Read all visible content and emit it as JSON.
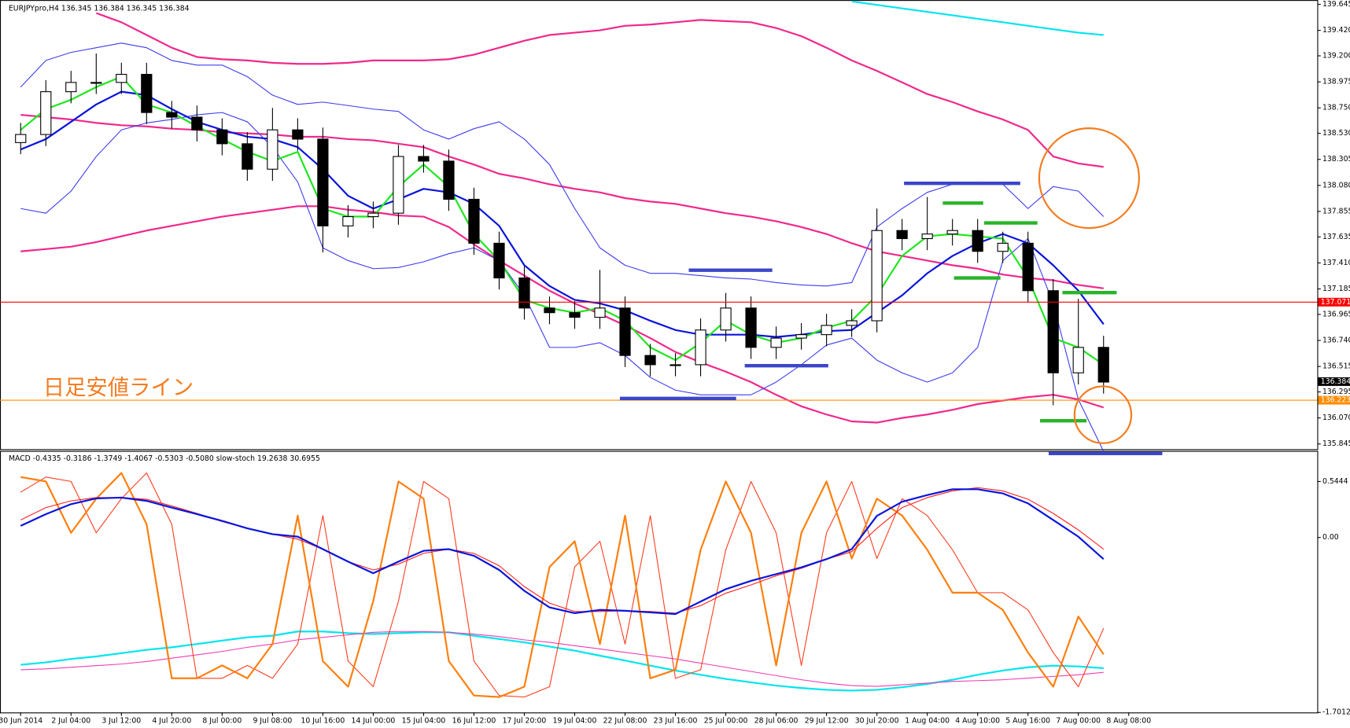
{
  "chart_data": [
    {
      "type": "candlestick",
      "title": "EURJPYpro,H4  136.345 136.384 136.345 136.384",
      "annotation": "日足安値ライン",
      "ylim": [
        135.8,
        139.682
      ],
      "yticks": [
        139.645,
        {
          "value": 139.42,
          "label": "139.420"
        },
        {
          "value": 139.2,
          "label": "139.200"
        },
        138.975,
        {
          "value": 138.75,
          "label": "138.750"
        },
        {
          "value": 138.53,
          "label": "138.530"
        },
        138.305,
        {
          "value": 138.08,
          "label": "138.080"
        },
        137.855,
        137.635,
        {
          "value": 137.41,
          "label": "137.410"
        },
        137.185,
        136.965,
        {
          "value": 136.74,
          "label": "136.740"
        },
        136.515,
        136.295,
        {
          "value": 136.07,
          "label": "136.070"
        },
        135.845
      ],
      "levels": [
        {
          "value": 137.071,
          "color": "#ff0000"
        },
        {
          "value": 136.223,
          "color": "#ff8c00"
        }
      ],
      "last_price": 136.384,
      "open": [
        138.45,
        138.52,
        138.89,
        138.97,
        138.97,
        139.04,
        138.71,
        138.67,
        138.56,
        138.44,
        138.22,
        138.56,
        138.48,
        137.73,
        137.81,
        137.84,
        138.33,
        138.29,
        137.96,
        137.58,
        137.28,
        137.02,
        136.98,
        136.94,
        137.02,
        136.61,
        136.53,
        136.53,
        136.83,
        137.02,
        136.68,
        136.76,
        136.79,
        136.87,
        136.91,
        137.69,
        137.62,
        137.66,
        137.69,
        137.51,
        137.58,
        137.17,
        136.46,
        136.68
      ],
      "high": [
        138.62,
        138.99,
        139.07,
        139.22,
        139.14,
        139.14,
        138.81,
        138.77,
        138.66,
        138.54,
        138.75,
        138.66,
        138.58,
        137.91,
        137.94,
        138.43,
        138.43,
        138.39,
        138.06,
        137.68,
        137.38,
        137.12,
        137.08,
        137.35,
        137.12,
        136.71,
        136.63,
        136.93,
        137.15,
        137.12,
        136.86,
        136.89,
        136.97,
        137.01,
        137.88,
        137.79,
        137.98,
        137.79,
        137.79,
        137.68,
        137.68,
        137.27,
        137.1,
        136.78
      ],
      "low": [
        138.35,
        138.42,
        138.79,
        138.87,
        138.87,
        138.61,
        138.57,
        138.46,
        138.34,
        138.12,
        138.12,
        138.38,
        137.5,
        137.63,
        137.71,
        137.74,
        138.19,
        137.86,
        137.48,
        137.18,
        136.92,
        136.88,
        136.84,
        136.84,
        136.51,
        136.43,
        136.43,
        136.43,
        136.73,
        136.58,
        136.58,
        136.66,
        136.69,
        136.77,
        136.81,
        137.52,
        137.52,
        137.56,
        137.41,
        137.41,
        137.07,
        136.18,
        136.36,
        136.28
      ],
      "close": [
        138.52,
        138.89,
        138.97,
        138.97,
        139.04,
        138.71,
        138.67,
        138.56,
        138.44,
        138.22,
        138.56,
        138.48,
        137.73,
        137.81,
        137.84,
        138.33,
        138.29,
        137.96,
        137.58,
        137.28,
        137.02,
        136.98,
        136.94,
        137.02,
        136.61,
        136.53,
        136.53,
        136.83,
        137.02,
        136.68,
        136.76,
        136.79,
        136.87,
        136.91,
        137.69,
        137.62,
        137.66,
        137.69,
        137.51,
        137.58,
        137.17,
        136.46,
        136.68,
        136.38
      ],
      "series": [
        {
          "color": "#f0288c",
          "values": [
            null,
            null,
            null,
            139.57,
            139.49,
            139.38,
            139.27,
            139.19,
            139.17,
            139.16,
            139.14,
            139.13,
            139.13,
            139.14,
            139.16,
            139.16,
            139.16,
            139.17,
            139.21,
            139.27,
            139.33,
            139.38,
            139.4,
            139.42,
            139.46,
            139.47,
            139.49,
            139.51,
            139.5,
            139.49,
            139.44,
            139.37,
            139.27,
            139.16,
            139.07,
            138.97,
            138.87,
            138.8,
            138.72,
            138.65,
            138.56,
            138.33,
            138.27,
            138.24
          ]
        },
        {
          "color": "#f0288c",
          "values": [
            138.69,
            138.67,
            138.65,
            138.62,
            138.6,
            138.59,
            138.57,
            138.56,
            138.54,
            138.53,
            138.52,
            138.5,
            138.5,
            138.48,
            138.47,
            138.44,
            138.41,
            138.33,
            138.26,
            138.18,
            138.14,
            138.09,
            138.05,
            138.02,
            137.97,
            137.94,
            137.92,
            137.88,
            137.84,
            137.81,
            137.77,
            137.72,
            137.66,
            137.58,
            137.51,
            137.47,
            137.43,
            137.39,
            137.36,
            137.31,
            137.28,
            137.26,
            137.22,
            137.19
          ]
        },
        {
          "color": "#f0288c",
          "values": [
            137.51,
            137.53,
            137.55,
            137.59,
            137.64,
            137.69,
            137.73,
            137.77,
            137.81,
            137.84,
            137.87,
            137.9,
            137.9,
            137.87,
            137.85,
            137.82,
            137.81,
            137.72,
            137.57,
            137.43,
            137.3,
            137.17,
            137.06,
            136.97,
            136.87,
            136.76,
            136.64,
            136.55,
            136.47,
            136.38,
            136.27,
            136.17,
            136.1,
            136.04,
            136.03,
            136.07,
            136.1,
            136.14,
            136.19,
            136.22,
            136.25,
            136.27,
            136.23,
            136.16
          ]
        },
        {
          "color": "#3c3cf0",
          "values": [
            138.93,
            139.16,
            139.23,
            139.27,
            139.31,
            139.27,
            139.16,
            139.12,
            139.12,
            139.02,
            138.86,
            138.78,
            138.8,
            138.77,
            138.74,
            138.72,
            138.56,
            138.48,
            138.57,
            138.63,
            138.48,
            138.26,
            137.88,
            137.54,
            137.39,
            137.32,
            137.32,
            137.3,
            137.28,
            137.27,
            137.24,
            137.22,
            137.21,
            137.24,
            137.72,
            137.88,
            138.02,
            138.09,
            138.11,
            138.09,
            137.88,
            138.07,
            138.03,
            137.81
          ]
        },
        {
          "color": "#3c3cf0",
          "values": [
            137.88,
            137.84,
            138.03,
            138.33,
            138.56,
            138.62,
            138.65,
            138.69,
            138.71,
            138.63,
            138.41,
            138.11,
            137.54,
            137.43,
            137.36,
            137.37,
            137.42,
            137.49,
            137.54,
            137.43,
            137.13,
            136.68,
            136.68,
            136.72,
            136.61,
            136.42,
            136.31,
            136.27,
            136.27,
            136.27,
            136.38,
            136.53,
            136.7,
            136.76,
            136.57,
            136.46,
            136.38,
            136.46,
            136.68,
            137.43,
            137.62,
            137.06,
            136.23,
            135.78
          ]
        },
        {
          "color": "#0a14dc",
          "values": [
            138.39,
            138.48,
            138.63,
            138.78,
            138.89,
            138.86,
            138.74,
            138.63,
            138.56,
            138.5,
            138.48,
            138.41,
            138.22,
            137.99,
            137.88,
            137.96,
            138.05,
            138.02,
            137.92,
            137.73,
            137.39,
            137.21,
            137.09,
            137.06,
            137.0,
            136.91,
            136.83,
            136.79,
            136.79,
            136.79,
            136.77,
            136.79,
            136.82,
            136.83,
            136.98,
            137.13,
            137.32,
            137.47,
            137.58,
            137.66,
            137.58,
            137.39,
            137.17,
            136.88
          ]
        },
        {
          "color": "#1ee61e",
          "values": [
            138.56,
            138.74,
            138.82,
            138.93,
            139.02,
            138.78,
            138.71,
            138.59,
            138.48,
            138.37,
            138.29,
            138.37,
            137.88,
            137.81,
            137.81,
            138.07,
            138.26,
            138.07,
            137.66,
            137.43,
            137.09,
            137.02,
            136.98,
            137.02,
            136.91,
            136.68,
            136.57,
            136.72,
            136.91,
            136.79,
            136.72,
            136.76,
            136.85,
            136.91,
            137.13,
            137.47,
            137.64,
            137.66,
            137.64,
            137.62,
            137.28,
            136.76,
            136.68,
            136.53
          ]
        },
        {
          "color": "#00e5ee",
          "values": [
            null,
            null,
            null,
            null,
            null,
            null,
            null,
            null,
            null,
            null,
            null,
            null,
            null,
            null,
            null,
            null,
            null,
            null,
            null,
            null,
            null,
            null,
            null,
            null,
            null,
            null,
            null,
            null,
            null,
            null,
            null,
            null,
            null,
            139.67,
            139.64,
            139.61,
            139.58,
            139.55,
            139.52,
            139.49,
            139.46,
            139.43,
            139.4,
            139.38
          ]
        }
      ]
    },
    {
      "type": "line",
      "title": "MACD -0.4335 -0.3186 -1.3749 -1.4067 -0.5303 -0.5080  slow-stoch 19.2638 30.6955",
      "ylim": [
        -1.7012,
        0.842
      ],
      "yticks": [
        0.5444,
        {
          "value": 0,
          "label": "0.00"
        },
        -1.7012
      ],
      "y2lim": [
        -6,
        108
      ],
      "time_labels": [
        "30 Jun 2014",
        "2 Jul 04:00",
        "3 Jul 12:00",
        "4 Jul 20:00",
        "8 Jul 00:00",
        "9 Jul 08:00",
        "10 Jul 16:00",
        "14 Jul 00:00",
        "15 Jul 04:00",
        "16 Jul 12:00",
        "17 Jul 20:00",
        "19 Jul 04:00",
        "22 Jul 08:00",
        "23 Jul 16:00",
        "25 Jul 00:00",
        "28 Jul 06:00",
        "29 Jul 12:00",
        "30 Jul 20:00",
        "1 Aug 04:00",
        "4 Aug 10:00",
        "5 Aug 16:00",
        "7 Aug 00:00",
        "8 Aug 08:00"
      ],
      "series": [
        {
          "color": "#00e5ee",
          "values": [
            -1.238,
            -1.214,
            -1.181,
            -1.157,
            -1.125,
            -1.092,
            -1.068,
            -1.036,
            -1.003,
            -0.971,
            -0.955,
            -0.914,
            -0.914,
            -0.93,
            -0.939,
            -0.93,
            -0.922,
            -0.922,
            -0.955,
            -0.987,
            -1.019,
            -1.06,
            -1.1,
            -1.149,
            -1.197,
            -1.246,
            -1.294,
            -1.335,
            -1.375,
            -1.408,
            -1.44,
            -1.464,
            -1.481,
            -1.489,
            -1.481,
            -1.456,
            -1.424,
            -1.383,
            -1.335,
            -1.294,
            -1.262,
            -1.246,
            -1.254,
            -1.27
          ]
        },
        {
          "color": "#f03cb4",
          "values": [
            -1.286,
            -1.278,
            -1.262,
            -1.246,
            -1.23,
            -1.206,
            -1.173,
            -1.141,
            -1.108,
            -1.068,
            -1.036,
            -0.995,
            -0.971,
            -0.947,
            -0.922,
            -0.914,
            -0.914,
            -0.922,
            -0.939,
            -0.963,
            -0.995,
            -1.019,
            -1.052,
            -1.084,
            -1.117,
            -1.149,
            -1.181,
            -1.222,
            -1.262,
            -1.303,
            -1.343,
            -1.383,
            -1.416,
            -1.44,
            -1.448,
            -1.432,
            -1.416,
            -1.4,
            -1.392,
            -1.383,
            -1.367,
            -1.351,
            -1.335,
            -1.311
          ]
        },
        {
          "color": "#ff3c1e",
          "axis": "y2",
          "values": [
            90,
            96.6,
            94.7,
            72.3,
            87.2,
            98.4,
            76.0,
            8.9,
            8.9,
            14.5,
            8.9,
            23.8,
            79.8,
            16.4,
            5.2,
            42.5,
            94.7,
            87.2,
            16.4,
            1.4,
            0.7,
            5.2,
            57.4,
            68.6,
            23.8,
            79.8,
            8.9,
            12.6,
            64.9,
            94.7,
            72.3,
            14.5,
            72.3,
            94.7,
            61.1,
            87.2,
            79.8,
            64.9,
            46.2,
            46.2,
            38.7,
            20.1,
            5.2,
            30.7
          ]
        },
        {
          "color": "#ff7f0e",
          "axis": "y2",
          "values": [
            96.6,
            94.7,
            72.3,
            87.2,
            98.4,
            76.0,
            8.9,
            8.9,
            14.5,
            8.9,
            23.8,
            79.8,
            16.4,
            5.2,
            42.5,
            94.7,
            87.2,
            16.4,
            1.4,
            0.7,
            5.2,
            57.4,
            68.6,
            23.8,
            79.8,
            8.9,
            12.6,
            64.9,
            94.7,
            72.3,
            14.5,
            72.3,
            94.7,
            61.1,
            87.2,
            79.8,
            64.9,
            46.2,
            46.2,
            38.7,
            20.1,
            5.2,
            35.8,
            19.3
          ]
        },
        {
          "color": "#ff2020",
          "values": [
            0.17,
            0.291,
            0.356,
            0.388,
            0.388,
            0.372,
            0.307,
            0.235,
            0.154,
            0.089,
            0.032,
            -0.016,
            -0.113,
            -0.235,
            -0.316,
            -0.259,
            -0.154,
            -0.113,
            -0.154,
            -0.275,
            -0.477,
            -0.639,
            -0.72,
            -0.72,
            -0.712,
            -0.72,
            -0.736,
            -0.663,
            -0.542,
            -0.461,
            -0.372,
            -0.299,
            -0.21,
            -0.138,
            0.089,
            0.291,
            0.388,
            0.453,
            0.485,
            0.453,
            0.372,
            0.235,
            0.073,
            -0.113
          ]
        },
        {
          "color": "#0a14dc",
          "values": [
            0.113,
            0.227,
            0.324,
            0.38,
            0.388,
            0.356,
            0.291,
            0.227,
            0.162,
            0.089,
            0.032,
            0.008,
            -0.113,
            -0.235,
            -0.348,
            -0.235,
            -0.129,
            -0.113,
            -0.178,
            -0.316,
            -0.518,
            -0.68,
            -0.736,
            -0.704,
            -0.712,
            -0.728,
            -0.744,
            -0.623,
            -0.502,
            -0.421,
            -0.356,
            -0.291,
            -0.21,
            -0.113,
            0.21,
            0.348,
            0.413,
            0.469,
            0.469,
            0.429,
            0.332,
            0.17,
            0.008,
            -0.21
          ]
        }
      ]
    }
  ]
}
